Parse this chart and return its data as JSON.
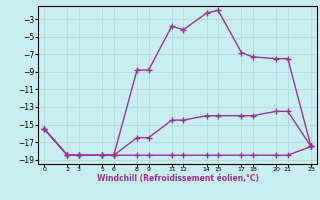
{
  "title": "",
  "xlabel": "Windchill (Refroidissement éolien,°C)",
  "ylabel": "",
  "background_color": "#c8eef0",
  "grid_color": "#b0d8d8",
  "line_color": "#993399",
  "xlim": [
    -0.5,
    23.5
  ],
  "ylim": [
    -19.5,
    -1.5
  ],
  "yticks": [
    -3,
    -5,
    -7,
    -9,
    -11,
    -13,
    -15,
    -17,
    -19
  ],
  "xticks": [
    0,
    2,
    3,
    5,
    6,
    8,
    9,
    11,
    12,
    14,
    15,
    17,
    18,
    20,
    21,
    23
  ],
  "xtick_labels": [
    "0",
    "2",
    "3",
    "5",
    "6",
    "8",
    "9",
    "11",
    "12",
    "14",
    "15",
    "17",
    "18",
    "20",
    "21",
    "23"
  ],
  "line1_x": [
    0,
    2,
    3,
    5,
    6,
    8,
    9,
    11,
    12,
    14,
    15,
    17,
    18,
    20,
    21,
    23
  ],
  "line1_y": [
    -15.5,
    -18.5,
    -18.5,
    -18.5,
    -18.5,
    -18.5,
    -18.5,
    -18.5,
    -18.5,
    -18.5,
    -18.5,
    -18.5,
    -18.5,
    -18.5,
    -18.5,
    -17.5
  ],
  "line2_x": [
    0,
    2,
    3,
    5,
    6,
    8,
    9,
    11,
    12,
    14,
    15,
    17,
    18,
    20,
    21,
    23
  ],
  "line2_y": [
    -15.5,
    -18.5,
    -18.5,
    -18.5,
    -18.5,
    -16.5,
    -16.5,
    -14.5,
    -14.5,
    -14.0,
    -14.0,
    -14.0,
    -14.0,
    -13.5,
    -13.5,
    -17.5
  ],
  "line3_x": [
    0,
    2,
    3,
    5,
    6,
    8,
    9,
    11,
    12,
    14,
    15,
    17,
    18,
    20,
    21,
    23
  ],
  "line3_y": [
    -15.5,
    -18.5,
    -18.5,
    -18.5,
    -18.5,
    -8.8,
    -8.8,
    -3.8,
    -4.2,
    -2.3,
    -2.0,
    -6.8,
    -7.3,
    -7.5,
    -7.5,
    -17.5
  ],
  "marker": "+",
  "markersize": 4,
  "linewidth": 1.0
}
